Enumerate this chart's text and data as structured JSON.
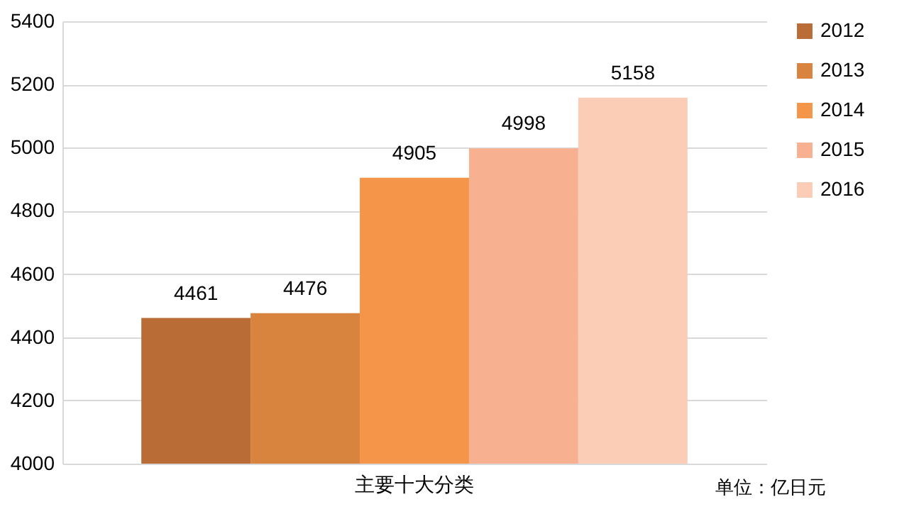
{
  "chart_data": {
    "type": "bar",
    "categories": [
      "主要十大分类"
    ],
    "series": [
      {
        "name": "2012",
        "color": "#b96c36",
        "values": [
          4461
        ]
      },
      {
        "name": "2013",
        "color": "#d8843e",
        "values": [
          4476
        ]
      },
      {
        "name": "2014",
        "color": "#f5954a",
        "values": [
          4905
        ]
      },
      {
        "name": "2015",
        "color": "#f7b191",
        "values": [
          4998
        ]
      },
      {
        "name": "2016",
        "color": "#fbcdb7",
        "values": [
          5158
        ]
      }
    ],
    "ylim": [
      4000,
      5400
    ],
    "yticks": [
      4000,
      4200,
      4400,
      4600,
      4800,
      5000,
      5200,
      5400
    ],
    "grid": "y",
    "legend": "right",
    "data_labels": true,
    "annotations": [
      "单位：亿日元"
    ]
  }
}
